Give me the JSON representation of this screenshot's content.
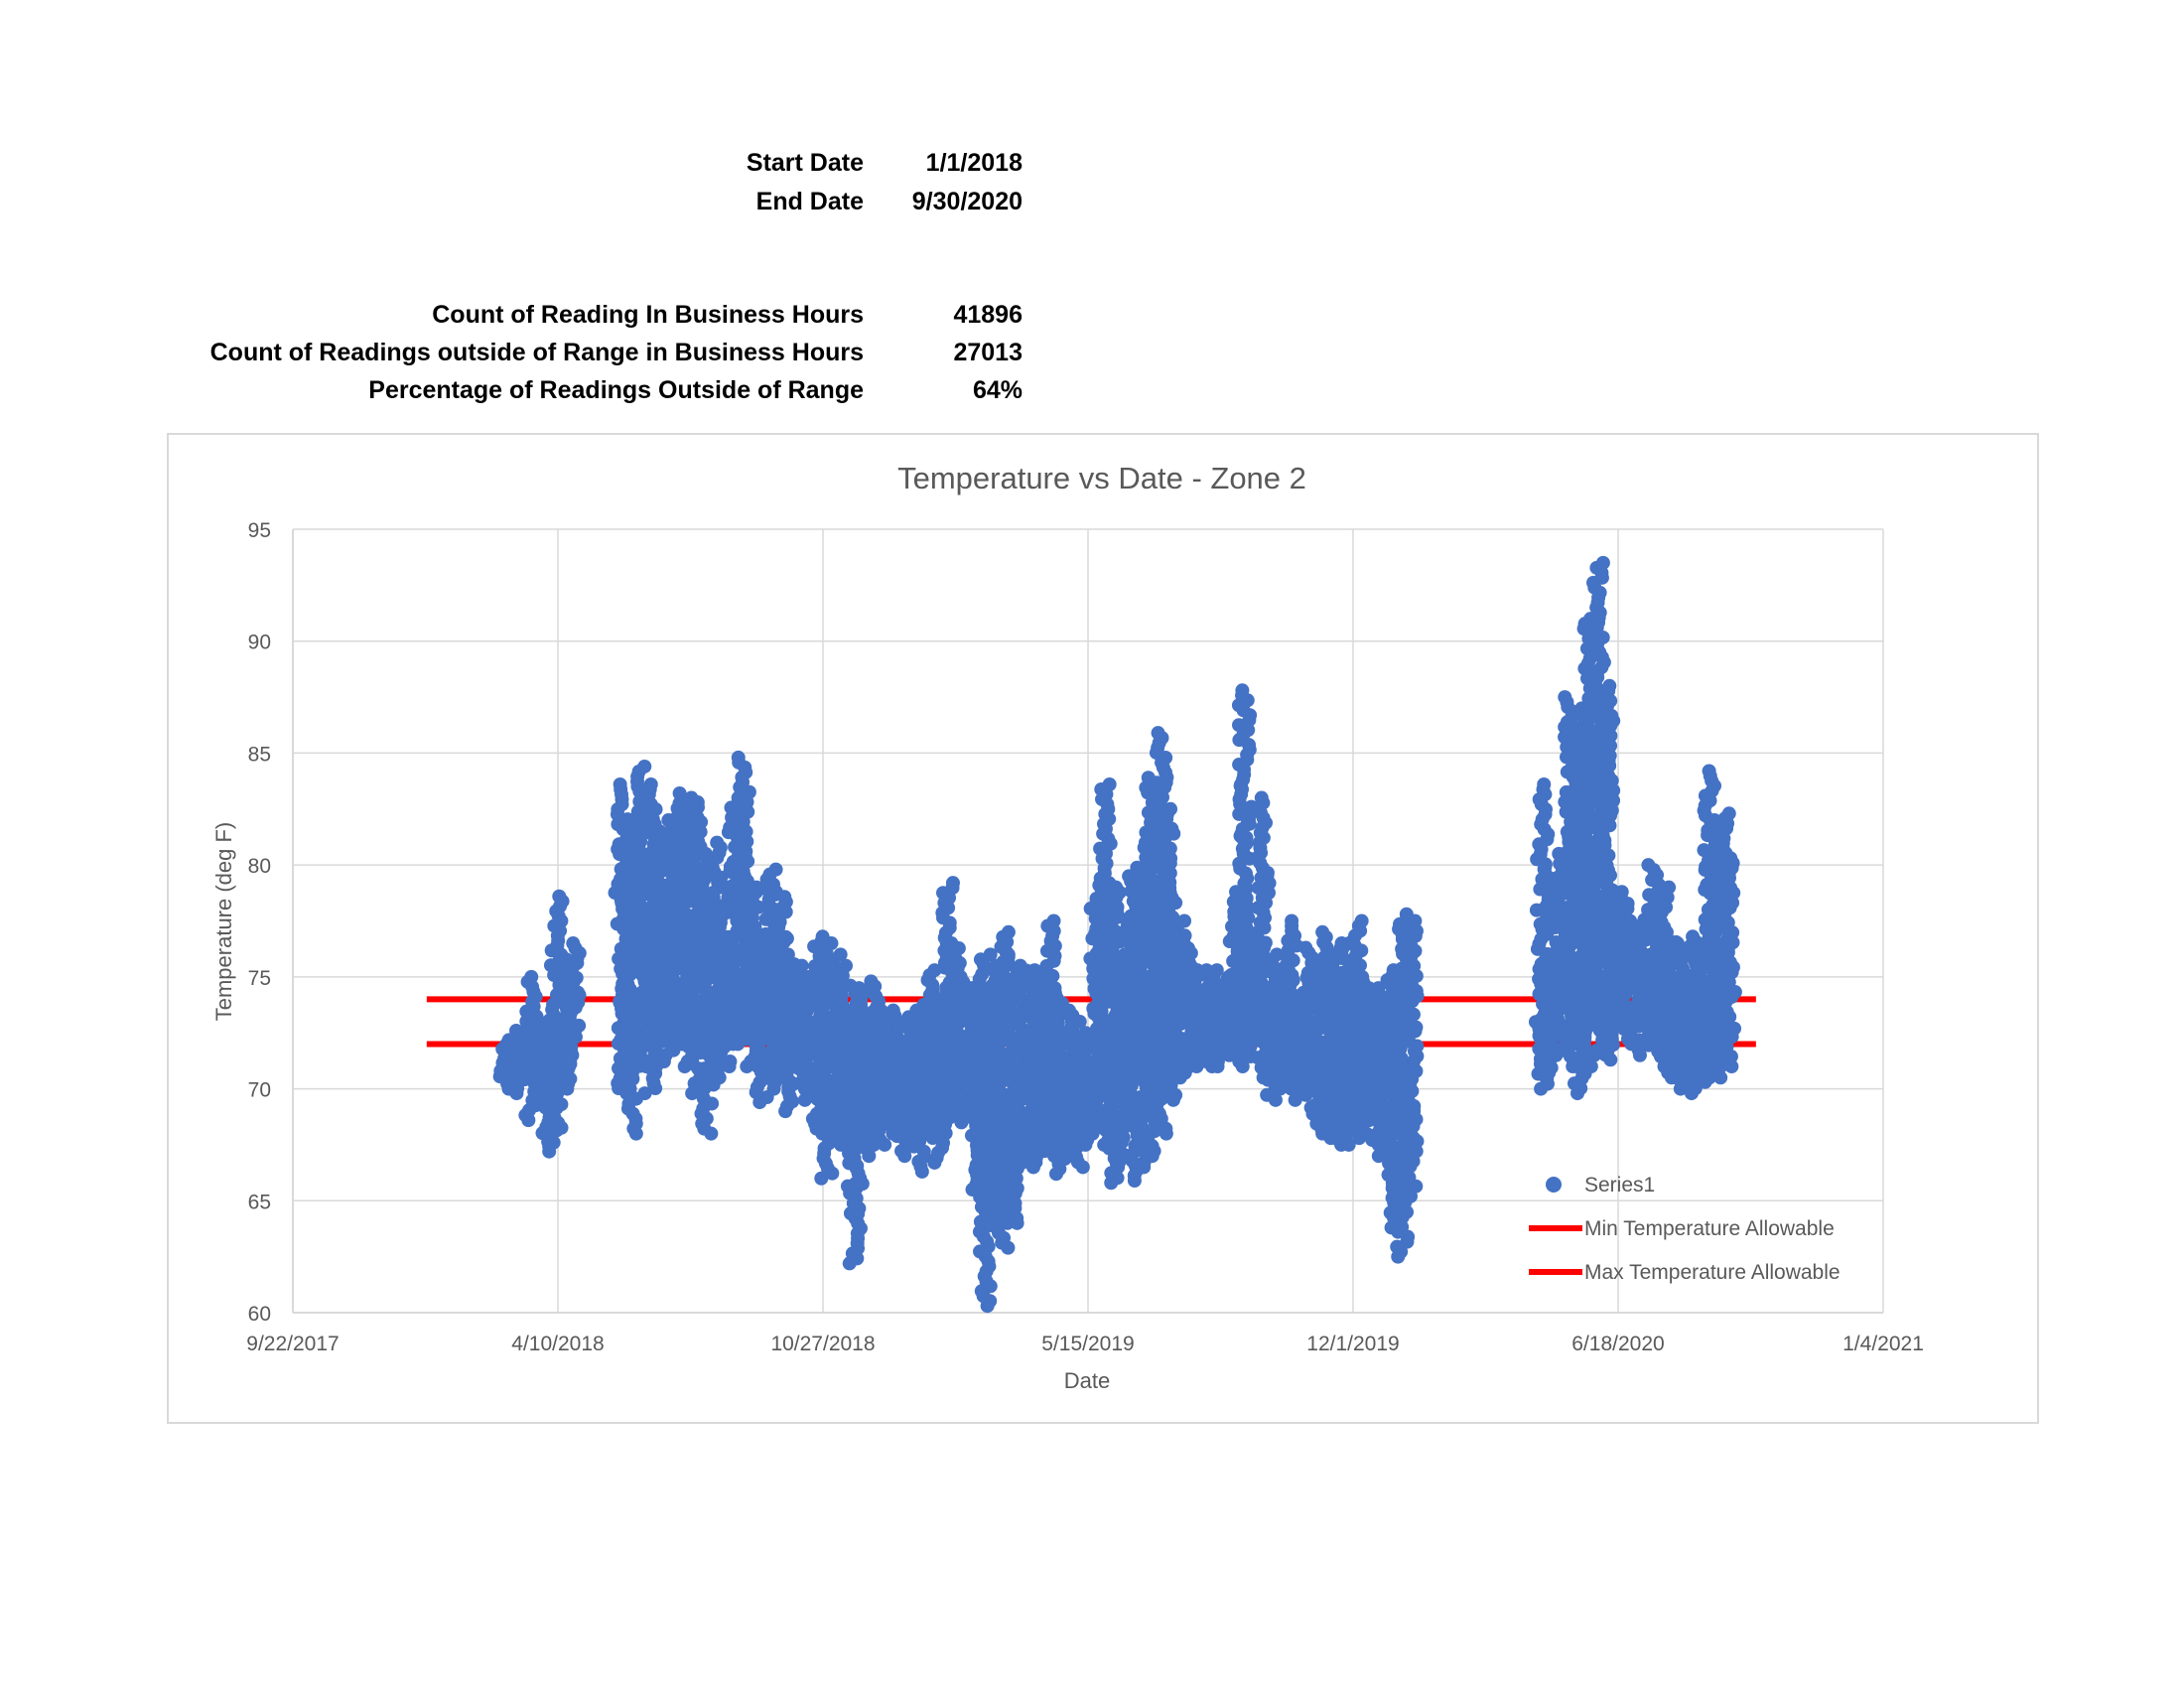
{
  "summary": {
    "start_label": "Start Date",
    "start_value": "1/1/2018",
    "end_label": "End Date",
    "end_value": "9/30/2020",
    "count_label": "Count of Reading In Business Hours",
    "count_value": "41896",
    "outside_label": "Count of Readings outside of Range in Business Hours",
    "outside_value": "27013",
    "pct_label": "Percentage of Readings Outside of Range",
    "pct_value": "64%"
  },
  "colors": {
    "series": "#4472C4",
    "limit": "#FF0000",
    "grid": "#D9D9D9",
    "axis_text": "#595959"
  },
  "chart_data": {
    "type": "scatter",
    "title": "Temperature vs Date - Zone 2",
    "xlabel": "Date",
    "ylabel": "Temperature (deg F)",
    "xlim": [
      "2017-09-22",
      "2021-01-04"
    ],
    "ylim": [
      60,
      95
    ],
    "x_tick_labels": [
      "9/22/2017",
      "4/10/2018",
      "10/27/2018",
      "5/15/2019",
      "12/1/2019",
      "6/18/2020",
      "1/4/2021"
    ],
    "y_tick_labels": [
      "60",
      "65",
      "70",
      "75",
      "80",
      "85",
      "90",
      "95"
    ],
    "grid": true,
    "legend_position": "bottom-right",
    "series": [
      {
        "name": "Series1",
        "kind": "scatter",
        "clusters": [
          {
            "x": "2018-03-01",
            "ymin": 70.0,
            "ymax": 72.0
          },
          {
            "x": "2018-03-07",
            "ymin": 69.8,
            "ymax": 72.4
          },
          {
            "x": "2018-03-14",
            "ymin": 70.2,
            "ymax": 72.6
          },
          {
            "x": "2018-03-21",
            "ymin": 68.6,
            "ymax": 75.0
          },
          {
            "x": "2018-03-28",
            "ymin": 69.8,
            "ymax": 72.8
          },
          {
            "x": "2018-04-04",
            "ymin": 67.2,
            "ymax": 72.2
          },
          {
            "x": "2018-04-09",
            "ymin": 67.6,
            "ymax": 78.6
          },
          {
            "x": "2018-04-15",
            "ymin": 70.0,
            "ymax": 76.0
          },
          {
            "x": "2018-04-22",
            "ymin": 71.0,
            "ymax": 76.5
          },
          {
            "x": "2018-05-29",
            "ymin": 69.8,
            "ymax": 83.6
          },
          {
            "x": "2018-06-05",
            "ymin": 68.0,
            "ymax": 82.0
          },
          {
            "x": "2018-06-12",
            "ymin": 71.0,
            "ymax": 84.4
          },
          {
            "x": "2018-06-19",
            "ymin": 69.8,
            "ymax": 83.6
          },
          {
            "x": "2018-06-26",
            "ymin": 71.0,
            "ymax": 81.5
          },
          {
            "x": "2018-07-03",
            "ymin": 71.5,
            "ymax": 82.0
          },
          {
            "x": "2018-07-10",
            "ymin": 72.0,
            "ymax": 83.2
          },
          {
            "x": "2018-07-17",
            "ymin": 71.0,
            "ymax": 83.0
          },
          {
            "x": "2018-07-24",
            "ymin": 69.8,
            "ymax": 82.8
          },
          {
            "x": "2018-07-31",
            "ymin": 68.0,
            "ymax": 80.5
          },
          {
            "x": "2018-08-07",
            "ymin": 70.5,
            "ymax": 81.0
          },
          {
            "x": "2018-08-14",
            "ymin": 71.0,
            "ymax": 79.0
          },
          {
            "x": "2018-08-21",
            "ymin": 72.0,
            "ymax": 83.0
          },
          {
            "x": "2018-08-28",
            "ymin": 72.0,
            "ymax": 84.8
          },
          {
            "x": "2018-09-04",
            "ymin": 71.0,
            "ymax": 79.0
          },
          {
            "x": "2018-09-11",
            "ymin": 69.4,
            "ymax": 77.0
          },
          {
            "x": "2018-09-18",
            "ymin": 70.0,
            "ymax": 79.8
          },
          {
            "x": "2018-09-25",
            "ymin": 70.5,
            "ymax": 78.8
          },
          {
            "x": "2018-10-02",
            "ymin": 69.0,
            "ymax": 76.0
          },
          {
            "x": "2018-10-09",
            "ymin": 70.0,
            "ymax": 75.5
          },
          {
            "x": "2018-10-16",
            "ymin": 69.5,
            "ymax": 75.0
          },
          {
            "x": "2018-10-23",
            "ymin": 68.0,
            "ymax": 76.8
          },
          {
            "x": "2018-10-30",
            "ymin": 66.0,
            "ymax": 76.5
          },
          {
            "x": "2018-11-06",
            "ymin": 68.0,
            "ymax": 76.0
          },
          {
            "x": "2018-11-13",
            "ymin": 67.5,
            "ymax": 75.5
          },
          {
            "x": "2018-11-20",
            "ymin": 62.2,
            "ymax": 74.5
          },
          {
            "x": "2018-11-27",
            "ymin": 67.0,
            "ymax": 74.0
          },
          {
            "x": "2018-12-04",
            "ymin": 67.5,
            "ymax": 74.8
          },
          {
            "x": "2018-12-11",
            "ymin": 67.5,
            "ymax": 73.5
          },
          {
            "x": "2018-12-18",
            "ymin": 68.0,
            "ymax": 73.5
          },
          {
            "x": "2018-12-25",
            "ymin": 67.0,
            "ymax": 73.0
          },
          {
            "x": "2019-01-01",
            "ymin": 67.5,
            "ymax": 73.2
          },
          {
            "x": "2019-01-08",
            "ymin": 66.3,
            "ymax": 73.5
          },
          {
            "x": "2019-01-15",
            "ymin": 68.0,
            "ymax": 75.3
          },
          {
            "x": "2019-01-22",
            "ymin": 66.7,
            "ymax": 74.0
          },
          {
            "x": "2019-01-29",
            "ymin": 68.5,
            "ymax": 79.2
          },
          {
            "x": "2019-02-05",
            "ymin": 69.0,
            "ymax": 76.5
          },
          {
            "x": "2019-02-12",
            "ymin": 68.5,
            "ymax": 75.0
          },
          {
            "x": "2019-02-19",
            "ymin": 65.5,
            "ymax": 74.5
          },
          {
            "x": "2019-02-26",
            "ymin": 60.3,
            "ymax": 76.0
          },
          {
            "x": "2019-03-05",
            "ymin": 65.0,
            "ymax": 75.5
          },
          {
            "x": "2019-03-12",
            "ymin": 62.9,
            "ymax": 77.0
          },
          {
            "x": "2019-03-19",
            "ymin": 64.0,
            "ymax": 76.0
          },
          {
            "x": "2019-03-26",
            "ymin": 66.5,
            "ymax": 75.5
          },
          {
            "x": "2019-04-02",
            "ymin": 66.5,
            "ymax": 75.0
          },
          {
            "x": "2019-04-09",
            "ymin": 67.0,
            "ymax": 75.3
          },
          {
            "x": "2019-04-16",
            "ymin": 67.0,
            "ymax": 77.5
          },
          {
            "x": "2019-04-23",
            "ymin": 66.2,
            "ymax": 74.5
          },
          {
            "x": "2019-04-30",
            "ymin": 67.0,
            "ymax": 73.5
          },
          {
            "x": "2019-05-07",
            "ymin": 66.5,
            "ymax": 73.0
          },
          {
            "x": "2019-05-14",
            "ymin": 67.5,
            "ymax": 72.5
          },
          {
            "x": "2019-05-21",
            "ymin": 68.0,
            "ymax": 78.5
          },
          {
            "x": "2019-05-28",
            "ymin": 67.5,
            "ymax": 83.6
          },
          {
            "x": "2019-06-04",
            "ymin": 65.8,
            "ymax": 79.0
          },
          {
            "x": "2019-06-11",
            "ymin": 66.5,
            "ymax": 76.0
          },
          {
            "x": "2019-06-18",
            "ymin": 65.9,
            "ymax": 79.5
          },
          {
            "x": "2019-06-25",
            "ymin": 66.5,
            "ymax": 81.0
          },
          {
            "x": "2019-07-02",
            "ymin": 67.0,
            "ymax": 83.9
          },
          {
            "x": "2019-07-09",
            "ymin": 68.0,
            "ymax": 85.9
          },
          {
            "x": "2019-07-16",
            "ymin": 69.5,
            "ymax": 82.5
          },
          {
            "x": "2019-07-23",
            "ymin": 70.5,
            "ymax": 77.5
          },
          {
            "x": "2019-07-30",
            "ymin": 71.0,
            "ymax": 76.5
          },
          {
            "x": "2019-08-06",
            "ymin": 71.0,
            "ymax": 75.3
          },
          {
            "x": "2019-08-13",
            "ymin": 71.0,
            "ymax": 75.3
          },
          {
            "x": "2019-08-20",
            "ymin": 71.0,
            "ymax": 75.3
          },
          {
            "x": "2019-08-27",
            "ymin": 71.5,
            "ymax": 75.0
          },
          {
            "x": "2019-09-03",
            "ymin": 71.5,
            "ymax": 78.8
          },
          {
            "x": "2019-09-10",
            "ymin": 71.0,
            "ymax": 87.8
          },
          {
            "x": "2019-09-17",
            "ymin": 72.0,
            "ymax": 76.5
          },
          {
            "x": "2019-09-24",
            "ymin": 70.5,
            "ymax": 83.0
          },
          {
            "x": "2019-10-01",
            "ymin": 69.5,
            "ymax": 76.0
          },
          {
            "x": "2019-10-08",
            "ymin": 70.0,
            "ymax": 74.5
          },
          {
            "x": "2019-10-15",
            "ymin": 70.0,
            "ymax": 77.5
          },
          {
            "x": "2019-10-22",
            "ymin": 69.5,
            "ymax": 74.0
          },
          {
            "x": "2019-10-29",
            "ymin": 70.5,
            "ymax": 76.3
          },
          {
            "x": "2019-11-05",
            "ymin": 68.0,
            "ymax": 75.5
          },
          {
            "x": "2019-11-12",
            "ymin": 67.8,
            "ymax": 77.0
          },
          {
            "x": "2019-11-19",
            "ymin": 67.5,
            "ymax": 76.5
          },
          {
            "x": "2019-11-26",
            "ymin": 67.5,
            "ymax": 76.5
          },
          {
            "x": "2019-12-03",
            "ymin": 67.8,
            "ymax": 77.5
          },
          {
            "x": "2019-12-10",
            "ymin": 68.0,
            "ymax": 75.0
          },
          {
            "x": "2019-12-17",
            "ymin": 67.5,
            "ymax": 74.5
          },
          {
            "x": "2019-12-24",
            "ymin": 67.0,
            "ymax": 74.5
          },
          {
            "x": "2019-12-31",
            "ymin": 63.8,
            "ymax": 75.3
          },
          {
            "x": "2020-01-07",
            "ymin": 62.5,
            "ymax": 77.8
          },
          {
            "x": "2020-01-14",
            "ymin": 65.2,
            "ymax": 77.5
          },
          {
            "x": "2020-04-22",
            "ymin": 70.0,
            "ymax": 83.6
          },
          {
            "x": "2020-04-29",
            "ymin": 70.5,
            "ymax": 76.0
          },
          {
            "x": "2020-05-06",
            "ymin": 71.5,
            "ymax": 80.5
          },
          {
            "x": "2020-05-13",
            "ymin": 71.0,
            "ymax": 87.5
          },
          {
            "x": "2020-05-20",
            "ymin": 69.8,
            "ymax": 87.0
          },
          {
            "x": "2020-05-27",
            "ymin": 71.0,
            "ymax": 91.0
          },
          {
            "x": "2020-06-03",
            "ymin": 71.5,
            "ymax": 93.5
          },
          {
            "x": "2020-06-10",
            "ymin": 71.3,
            "ymax": 88.0
          },
          {
            "x": "2020-06-17",
            "ymin": 72.0,
            "ymax": 78.8
          },
          {
            "x": "2020-06-24",
            "ymin": 72.0,
            "ymax": 78.5
          },
          {
            "x": "2020-07-01",
            "ymin": 72.0,
            "ymax": 77.5
          },
          {
            "x": "2020-07-08",
            "ymin": 71.5,
            "ymax": 78.0
          },
          {
            "x": "2020-07-15",
            "ymin": 72.0,
            "ymax": 80.0
          },
          {
            "x": "2020-07-22",
            "ymin": 71.0,
            "ymax": 79.0
          },
          {
            "x": "2020-07-29",
            "ymin": 70.5,
            "ymax": 77.0
          },
          {
            "x": "2020-08-05",
            "ymin": 70.0,
            "ymax": 76.5
          },
          {
            "x": "2020-08-12",
            "ymin": 69.8,
            "ymax": 76.8
          },
          {
            "x": "2020-08-19",
            "ymin": 70.3,
            "ymax": 76.5
          },
          {
            "x": "2020-08-26",
            "ymin": 70.5,
            "ymax": 84.2
          },
          {
            "x": "2020-09-02",
            "ymin": 70.5,
            "ymax": 82.0
          },
          {
            "x": "2020-09-09",
            "ymin": 71.0,
            "ymax": 82.3
          }
        ]
      },
      {
        "name": "Min Temperature Allowable",
        "kind": "line",
        "x": [
          "2018-01-01",
          "2020-09-30"
        ],
        "values": [
          72,
          72
        ]
      },
      {
        "name": "Max Temperature Allowable",
        "kind": "line",
        "x": [
          "2018-01-01",
          "2020-09-30"
        ],
        "values": [
          74,
          74
        ]
      }
    ]
  }
}
